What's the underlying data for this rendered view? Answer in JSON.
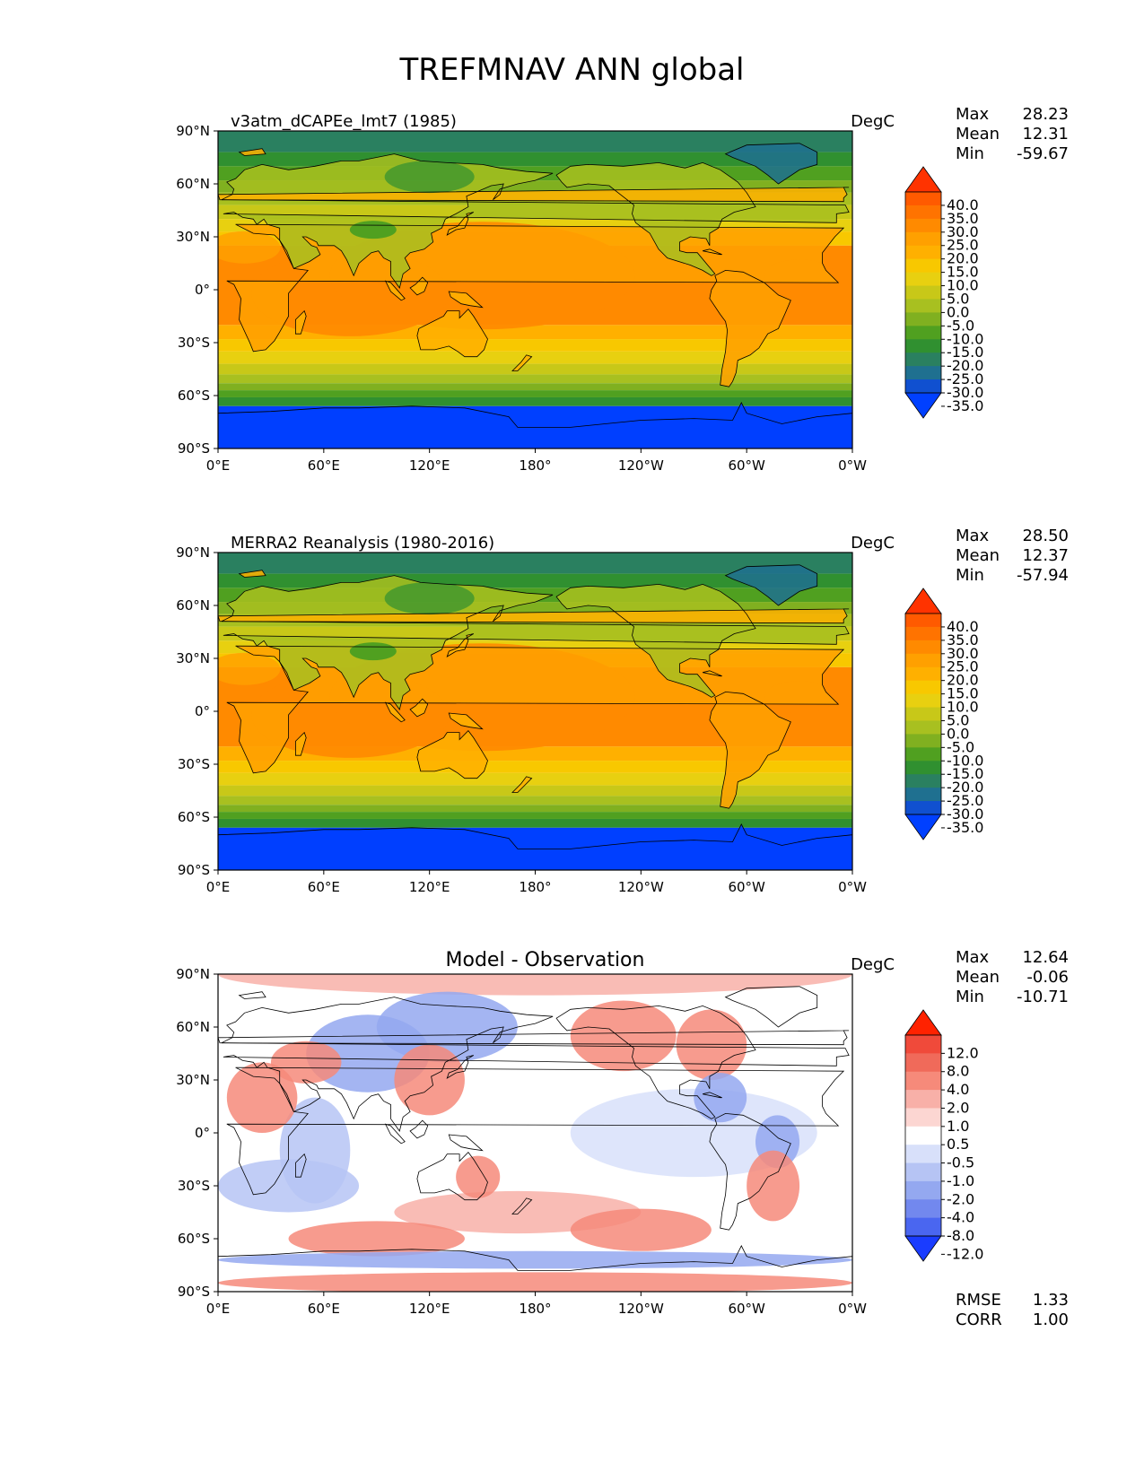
{
  "title": "TREFMNAV ANN global",
  "x_ticks": [
    "0°E",
    "60°E",
    "120°E",
    "180°",
    "120°W",
    "60°W",
    "0°W"
  ],
  "y_ticks": [
    "90°N",
    "60°N",
    "30°N",
    "0°",
    "30°S",
    "60°S",
    "90°S"
  ],
  "panels": [
    {
      "label": "v3atm_dCAPEe_lmt7 (1985)",
      "label_style": "left",
      "units": "DegC",
      "stats": {
        "max_label": "Max",
        "max": "28.23",
        "mean_label": "Mean",
        "mean": "12.31",
        "min_label": "Min",
        "min": "-59.67"
      },
      "colorbar": {
        "labels": [
          "40.0",
          "35.0",
          "30.0",
          "25.0",
          "20.0",
          "15.0",
          "10.0",
          "5.0",
          "0.0",
          "-5.0",
          "-10.0",
          "-15.0",
          "-20.0",
          "-25.0",
          "-30.0",
          "-35.0"
        ],
        "colors": [
          "#ff3300",
          "#ff5a00",
          "#ff7300",
          "#ff8a00",
          "#ffa000",
          "#ffb000",
          "#f8c800",
          "#e8d010",
          "#c8c818",
          "#a8c020",
          "#80b020",
          "#50a020",
          "#309030",
          "#2a8060",
          "#1f7090",
          "#1050d0",
          "#0040ff"
        ]
      },
      "field": "model"
    },
    {
      "label": "MERRA2 Reanalysis (1980-2016)",
      "label_style": "left",
      "units": "DegC",
      "stats": {
        "max_label": "Max",
        "max": "28.50",
        "mean_label": "Mean",
        "mean": "12.37",
        "min_label": "Min",
        "min": "-57.94"
      },
      "colorbar": {
        "labels": [
          "40.0",
          "35.0",
          "30.0",
          "25.0",
          "20.0",
          "15.0",
          "10.0",
          "5.0",
          "0.0",
          "-5.0",
          "-10.0",
          "-15.0",
          "-20.0",
          "-25.0",
          "-30.0",
          "-35.0"
        ],
        "colors": [
          "#ff3300",
          "#ff5a00",
          "#ff7300",
          "#ff8a00",
          "#ffa000",
          "#ffb000",
          "#f8c800",
          "#e8d010",
          "#c8c818",
          "#a8c020",
          "#80b020",
          "#50a020",
          "#309030",
          "#2a8060",
          "#1f7090",
          "#1050d0",
          "#0040ff"
        ]
      },
      "field": "obs"
    },
    {
      "label": "Model - Observation",
      "label_style": "center",
      "units": "DegC",
      "stats": {
        "max_label": "Max",
        "max": "12.64",
        "mean_label": "Mean",
        "mean": "-0.06",
        "min_label": "Min",
        "min": "-10.71"
      },
      "extra_stats": {
        "rmse_label": "RMSE",
        "rmse": "1.33",
        "corr_label": "CORR",
        "corr": "1.00"
      },
      "colorbar": {
        "labels": [
          "12.0",
          "8.0",
          "4.0",
          "2.0",
          "1.0",
          "0.5",
          "-0.5",
          "-1.0",
          "-2.0",
          "-4.0",
          "-8.0",
          "-12.0"
        ],
        "colors": [
          "#ff2200",
          "#f04a3a",
          "#f06a5a",
          "#f68a7a",
          "#f8b0a8",
          "#fcd6d2",
          "#ffffff",
          "#d8e0fa",
          "#b6c4f4",
          "#94a8f0",
          "#7288ee",
          "#4a66f0",
          "#1a3cff"
        ]
      },
      "field": "diff"
    }
  ],
  "chart_data": {
    "type": "heatmap",
    "title": "TREFMNAV ANN global",
    "x_axis_ticks": [
      "0°E",
      "60°E",
      "120°E",
      "180°",
      "120°W",
      "60°W",
      "0°W"
    ],
    "y_axis_ticks": [
      "90°N",
      "60°N",
      "30°N",
      "0°",
      "30°S",
      "60°S",
      "90°S"
    ],
    "xlim": [
      0,
      360
    ],
    "ylim": [
      -90,
      90
    ],
    "panels": [
      {
        "name": "v3atm_dCAPEe_lmt7 (1985)",
        "units": "DegC",
        "max": 28.23,
        "mean": 12.31,
        "min": -59.67,
        "levels": [
          -35,
          -30,
          -25,
          -20,
          -15,
          -10,
          -5,
          0,
          5,
          10,
          15,
          20,
          25,
          30,
          35,
          40
        ]
      },
      {
        "name": "MERRA2 Reanalysis (1980-2016)",
        "units": "DegC",
        "max": 28.5,
        "mean": 12.37,
        "min": -57.94,
        "levels": [
          -35,
          -30,
          -25,
          -20,
          -15,
          -10,
          -5,
          0,
          5,
          10,
          15,
          20,
          25,
          30,
          35,
          40
        ]
      },
      {
        "name": "Model - Observation",
        "units": "DegC",
        "max": 12.64,
        "mean": -0.06,
        "min": -10.71,
        "rmse": 1.33,
        "corr": 1.0,
        "levels": [
          -12,
          -8,
          -4,
          -2,
          -1,
          -0.5,
          0.5,
          1,
          2,
          4,
          8,
          12
        ]
      }
    ]
  }
}
